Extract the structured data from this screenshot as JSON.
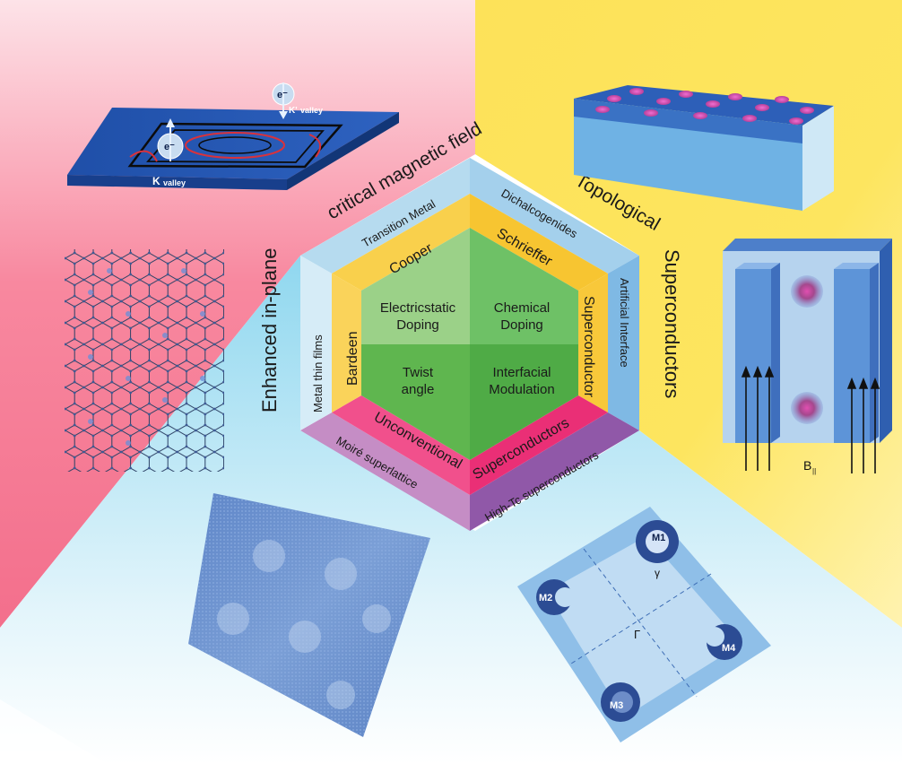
{
  "outer_labels": {
    "top_left_line1": "critical magnetic field",
    "top_left_line2": "Enhanced in-plane",
    "top_right_line1": "Topological",
    "top_right_line2": "Superconductors"
  },
  "materials_ring": {
    "top_left": "Transition Metal",
    "top_right": "Dichalcogenides",
    "right": "Artificial Interface",
    "bottom_right": "High-Tc superconductors",
    "bottom_left": "Moiré superlattice",
    "left": "Metal thin films"
  },
  "theory_ring": {
    "top_left": "Cooper",
    "top_right": "Schrieffer",
    "right": "Superconductor",
    "bottom_right": "Superconductors",
    "bottom_left": "Unconventional",
    "left": "Bardeen"
  },
  "core": {
    "q1_line1": "Electricstatic",
    "q1_line2": "Doping",
    "q2_line1": "Chemical",
    "q2_line2": "Doping",
    "q3_line1": "Twist",
    "q3_line2": "angle",
    "q4_line1": "Interfacial",
    "q4_line2": "Modulation"
  },
  "ising_panel": {
    "k_label": "K",
    "k_sub": "valley",
    "kp_label": "K'",
    "kp_sub": "valley",
    "electron": "e⁻"
  },
  "vortex_panel": {
    "field_label": "B",
    "field_sub": "||"
  },
  "bz_panel": {
    "m1": "M1",
    "m2": "M2",
    "m3": "M3",
    "m4": "M4",
    "gamma": "Γ",
    "gamma_small": "γ"
  },
  "colors": {
    "pink_sector": "#f5748f",
    "yellow_sector": "#fce35a",
    "cyan_sector": "#9fdcf0",
    "materials_ring": "#a9d2ec",
    "theory_ring": "#f7c531",
    "core_green": "#5cb85c",
    "unconv_pink": "#ef3b7e",
    "moire_purple": "#c58dc5",
    "hightc_purple": "#9058a8"
  }
}
